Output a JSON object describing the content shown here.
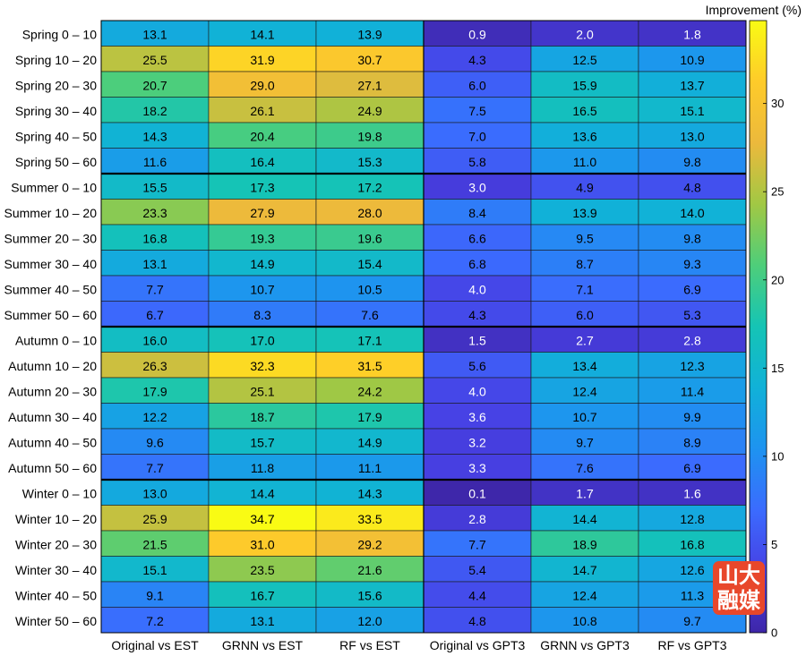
{
  "chart_data": {
    "type": "heatmap",
    "title": "",
    "columns": [
      "Original vs EST",
      "GRNN vs EST",
      "RF vs EST",
      "Original vs GPT3",
      "GRNN vs GPT3",
      "RF vs GPT3"
    ],
    "rows": [
      "Spring 0 – 10",
      "Spring 10 – 20",
      "Spring 20 – 30",
      "Spring 30 – 40",
      "Spring 40 – 50",
      "Spring 50 – 60",
      "Summer 0 – 10",
      "Summer 10 – 20",
      "Summer 20 – 30",
      "Summer 30 – 40",
      "Summer 40 – 50",
      "Summer 50 – 60",
      "Autumn 0 – 10",
      "Autumn 10 – 20",
      "Autumn 20 – 30",
      "Autumn 30 – 40",
      "Autumn 40 – 50",
      "Autumn 50 – 60",
      "Winter 0 – 10",
      "Winter 10 – 20",
      "Winter 20 – 30",
      "Winter 30 – 40",
      "Winter 40 – 50",
      "Winter 50 – 60"
    ],
    "values": [
      [
        13.1,
        14.1,
        13.9,
        0.9,
        2.0,
        1.8
      ],
      [
        25.5,
        31.9,
        30.7,
        4.3,
        12.5,
        10.9
      ],
      [
        20.7,
        29.0,
        27.1,
        6.0,
        15.9,
        13.7
      ],
      [
        18.2,
        26.1,
        24.9,
        7.5,
        16.5,
        15.1
      ],
      [
        14.3,
        20.4,
        19.8,
        7.0,
        13.6,
        13.0
      ],
      [
        11.6,
        16.4,
        15.3,
        5.8,
        11.0,
        9.8
      ],
      [
        15.5,
        17.3,
        17.2,
        3.0,
        4.9,
        4.8
      ],
      [
        23.3,
        27.9,
        28.0,
        8.4,
        13.9,
        14.0
      ],
      [
        16.8,
        19.3,
        19.6,
        6.6,
        9.5,
        9.8
      ],
      [
        13.1,
        14.9,
        15.4,
        6.8,
        8.7,
        9.3
      ],
      [
        7.7,
        10.7,
        10.5,
        4.0,
        7.1,
        6.9
      ],
      [
        6.7,
        8.3,
        7.6,
        4.3,
        6.0,
        5.3
      ],
      [
        16.0,
        17.0,
        17.1,
        1.5,
        2.7,
        2.8
      ],
      [
        26.3,
        32.3,
        31.5,
        5.6,
        13.4,
        12.3
      ],
      [
        17.9,
        25.1,
        24.2,
        4.0,
        12.4,
        11.4
      ],
      [
        12.2,
        18.7,
        17.9,
        3.6,
        10.7,
        9.9
      ],
      [
        9.6,
        15.7,
        14.9,
        3.2,
        9.7,
        8.9
      ],
      [
        7.7,
        11.8,
        11.1,
        3.3,
        7.6,
        6.9
      ],
      [
        13.0,
        14.4,
        14.3,
        0.1,
        1.7,
        1.6
      ],
      [
        25.9,
        34.7,
        33.5,
        2.8,
        14.4,
        12.8
      ],
      [
        21.5,
        31.0,
        29.2,
        7.7,
        18.9,
        16.8
      ],
      [
        15.1,
        23.5,
        21.6,
        5.4,
        14.7,
        12.6
      ],
      [
        9.1,
        16.7,
        15.6,
        4.4,
        12.4,
        11.3
      ],
      [
        7.2,
        13.1,
        12.0,
        4.8,
        10.8,
        9.7
      ]
    ],
    "colorbar": {
      "label": "Improvement (%)",
      "range": [
        0,
        34.7
      ],
      "ticks": [
        0,
        5,
        10,
        15,
        20,
        25,
        30
      ],
      "colormap": "parula"
    },
    "group_separators_after_rows": [
      6,
      12,
      18
    ],
    "vertical_separator_after_column": 3
  },
  "watermark": {
    "lines": [
      "山大",
      "融媒"
    ],
    "color": "#e8472b"
  }
}
